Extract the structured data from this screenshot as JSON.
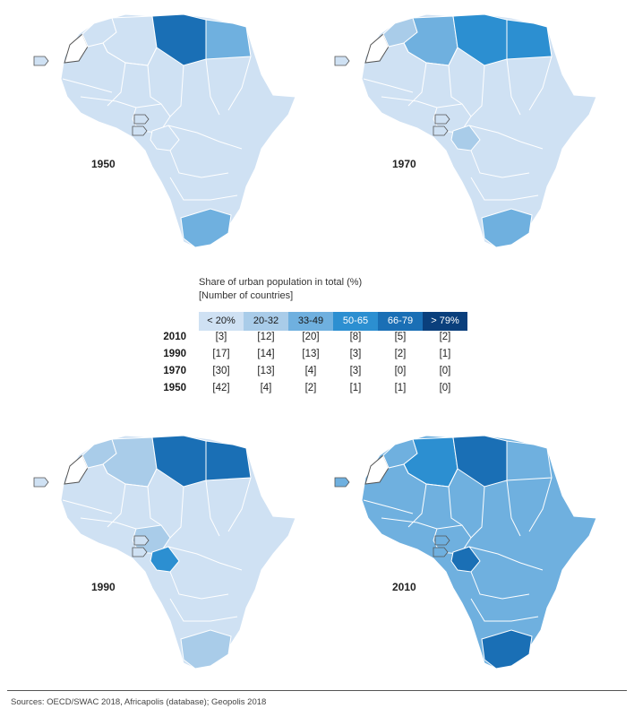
{
  "legend": {
    "title": "Share of urban population in total (%)",
    "subtitle": "[Number of countries]",
    "classes": [
      {
        "label": "< 20%",
        "color": "#cfe1f3",
        "text_color": "#1a1a1a"
      },
      {
        "label": "20-32",
        "color": "#a9cce9",
        "text_color": "#1a1a1a"
      },
      {
        "label": "33-49",
        "color": "#6fb0df",
        "text_color": "#1a1a1a"
      },
      {
        "label": "50-65",
        "color": "#2c8fd1",
        "text_color": "#ffffff"
      },
      {
        "label": "66-79",
        "color": "#1a6fb5",
        "text_color": "#ffffff"
      },
      {
        "label": "> 79%",
        "color": "#0a3f7c",
        "text_color": "#ffffff"
      }
    ],
    "rows": [
      {
        "year": "2010",
        "counts": [
          "[3]",
          "[12]",
          "[20]",
          "[8]",
          "[5]",
          "[2]"
        ]
      },
      {
        "year": "1990",
        "counts": [
          "[17]",
          "[14]",
          "[13]",
          "[3]",
          "[2]",
          "[1]"
        ]
      },
      {
        "year": "1970",
        "counts": [
          "[30]",
          "[13]",
          "[4]",
          "[3]",
          "[0]",
          "[0]"
        ]
      },
      {
        "year": "1950",
        "counts": [
          "[42]",
          "[4]",
          "[2]",
          "[1]",
          "[1]",
          "[0]"
        ]
      }
    ]
  },
  "maps": [
    {
      "year": "1950",
      "classes": {
        "base": 0,
        "libya": 4,
        "egypt": 2,
        "southafrica": 2,
        "nigeria": 0,
        "congo": 0,
        "morocco": 0,
        "algeria": 0
      }
    },
    {
      "year": "1970",
      "classes": {
        "base": 0,
        "libya": 3,
        "egypt": 3,
        "southafrica": 2,
        "algeria": 2,
        "congo": 1,
        "morocco": 1,
        "nigeria": 0
      }
    },
    {
      "year": "1990",
      "classes": {
        "base": 0,
        "libya": 4,
        "egypt": 4,
        "southafrica": 1,
        "algeria": 1,
        "congo": 3,
        "morocco": 1,
        "nigeria": 1
      }
    },
    {
      "year": "2010",
      "classes": {
        "base": 2,
        "libya": 4,
        "egypt": 2,
        "southafrica": 4,
        "algeria": 3,
        "congo": 4,
        "morocco": 2,
        "nigeria": 2
      }
    }
  ],
  "sources": "Sources: OECD/SWAC 2018, Africapolis (database); Geopolis 2018"
}
